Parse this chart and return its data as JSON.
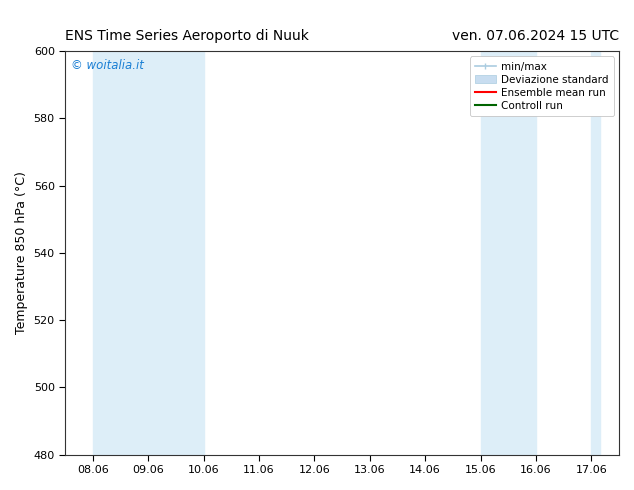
{
  "title_left": "ENS Time Series Aeroporto di Nuuk",
  "title_right": "ven. 07.06.2024 15 UTC",
  "ylabel": "Temperature 850 hPa (°C)",
  "ylim": [
    480,
    600
  ],
  "yticks": [
    480,
    500,
    520,
    540,
    560,
    580,
    600
  ],
  "xtick_labels": [
    "08.06",
    "09.06",
    "10.06",
    "11.06",
    "12.06",
    "13.06",
    "14.06",
    "15.06",
    "16.06",
    "17.06"
  ],
  "shaded_bands": [
    {
      "xstart": 0,
      "xend": 2
    },
    {
      "xstart": 7,
      "xend": 8
    },
    {
      "xstart": 9,
      "xend": 9.15
    }
  ],
  "band_color": "#ddeef8",
  "background_color": "#ffffff",
  "watermark": "© woitalia.it",
  "watermark_color": "#1a7fd4",
  "title_fontsize": 10,
  "axis_fontsize": 9,
  "tick_fontsize": 8,
  "legend_fontsize": 7.5,
  "legend_handle_color_minmax": "#aacce0",
  "legend_handle_color_devstd": "#c8ddf0",
  "legend_line_color_ensemble": "#ff0000",
  "legend_line_color_control": "#006400"
}
